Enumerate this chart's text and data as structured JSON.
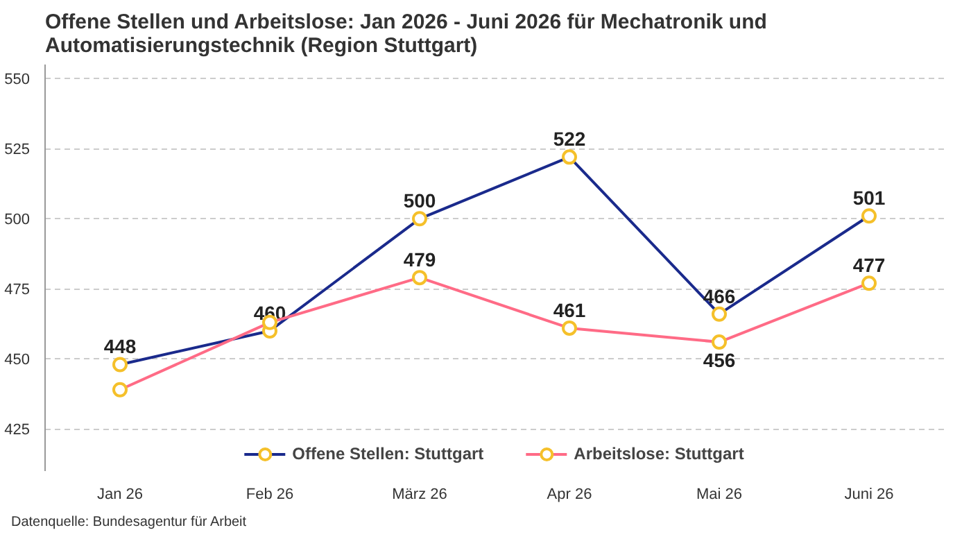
{
  "chart_data": {
    "type": "line",
    "title": "Offene Stellen und Arbeitslose: Jan 2026 - Juni 2026 für Mechatronik und Automatisierungstechnik (Region Stuttgart)",
    "categories": [
      "Jan 26",
      "Feb 26",
      "März 26",
      "Apr 26",
      "Mai 26",
      "Juni 26"
    ],
    "series": [
      {
        "name": "Offene Stellen: Stuttgart",
        "color": "#1a2a8c",
        "values": [
          448,
          460,
          500,
          522,
          466,
          501
        ],
        "value_labels": [
          "448",
          "460",
          "500",
          "522",
          "466",
          "501"
        ]
      },
      {
        "name": "Arbeitslose: Stuttgart",
        "color": "#ff6b86",
        "values": [
          439,
          463,
          479,
          461,
          456,
          477
        ],
        "value_labels": [
          null,
          null,
          "479",
          "461",
          "456",
          "477"
        ]
      }
    ],
    "ylim": [
      410,
      555
    ],
    "yticks": [
      425,
      450,
      475,
      500,
      525,
      550
    ],
    "grid": "y",
    "legend": "bottom",
    "marker": "circle",
    "line_style": "solid",
    "annotations": [
      "Datenquelle: Bundesagentur für Arbeit"
    ]
  }
}
